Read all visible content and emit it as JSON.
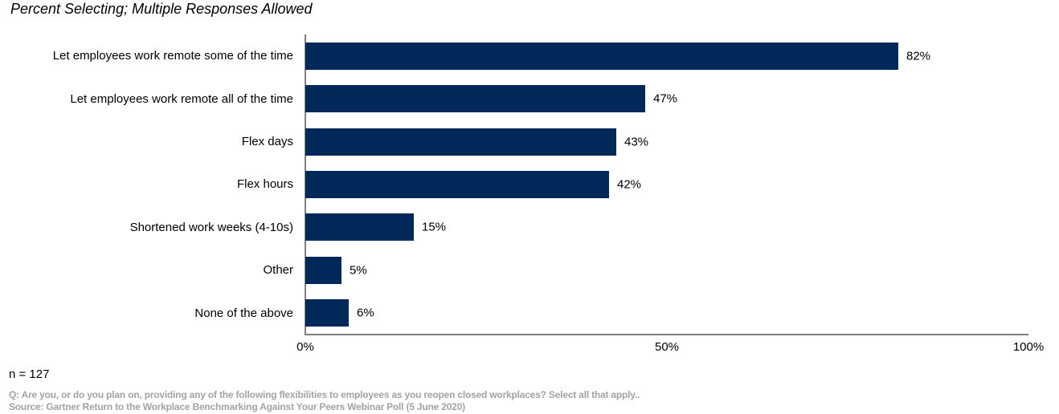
{
  "chart_data": {
    "type": "bar",
    "orientation": "horizontal",
    "title": "Percent Selecting; Multiple Responses Allowed",
    "categories": [
      "Let employees work remote some of the time",
      "Let employees work remote all of the time",
      "Flex days",
      "Flex hours",
      "Shortened work weeks (4-10s)",
      "Other",
      "None of the above"
    ],
    "values": [
      82,
      47,
      43,
      42,
      15,
      5,
      6
    ],
    "value_labels": [
      "82%",
      "47%",
      "43%",
      "42%",
      "15%",
      "5%",
      "6%"
    ],
    "xlabel": "",
    "ylabel": "",
    "xlim": [
      0,
      100
    ],
    "x_ticks": [
      {
        "label": "0%",
        "value": 0
      },
      {
        "label": "50%",
        "value": 50
      },
      {
        "label": "100%",
        "value": 100
      }
    ],
    "grid": false,
    "legend": "none",
    "bar_color": "#00295a",
    "axis_color": "#808080"
  },
  "footer": {
    "sample": "n = 127",
    "question": "Q: Are you, or do you plan on, providing any of the following flexibilities to employees as you reopen closed workplaces? Select all that apply..",
    "source": "Source: Gartner Return to the Workplace Benchmarking Against Your Peers Webinar Poll (5 June 2020)"
  }
}
